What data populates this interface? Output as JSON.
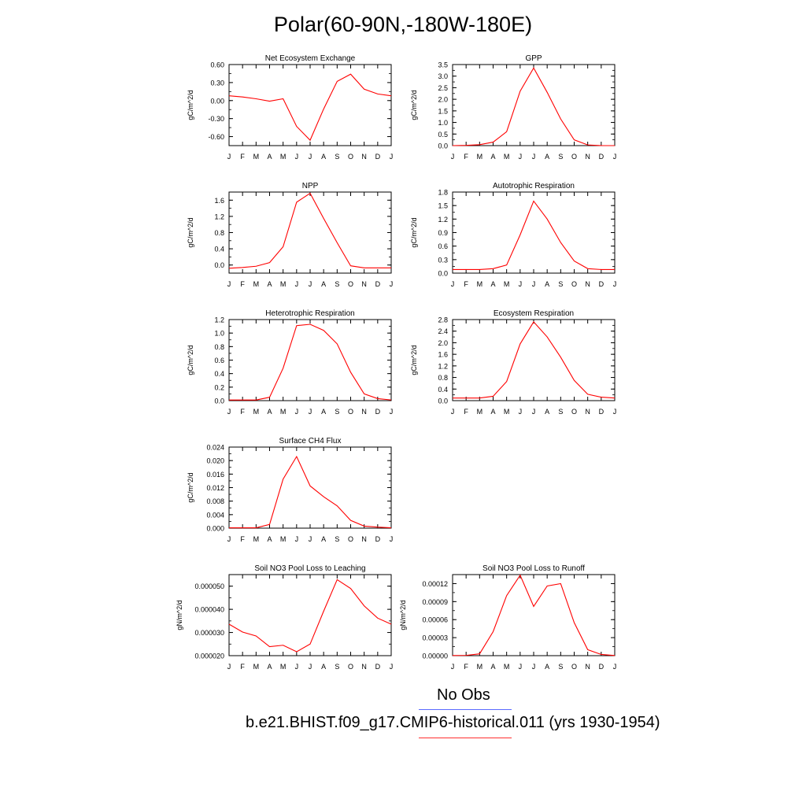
{
  "figure": {
    "title": "Polar(60-90N,-180W-180E)"
  },
  "chart_data": [
    {
      "type": "line",
      "title": "Net Ecosystem Exchange",
      "ylabel": "gC/m^2/d",
      "xlabel": "",
      "x": [
        "J",
        "F",
        "M",
        "A",
        "M",
        "J",
        "J",
        "A",
        "S",
        "O",
        "N",
        "D",
        "J"
      ],
      "ylim": [
        -0.75,
        0.6
      ],
      "yticks": [
        0.6,
        0.3,
        0.0,
        -0.3,
        -0.6
      ],
      "ytick_labels": [
        "0.60",
        "0.30",
        "0.00",
        "-0.30",
        "-0.60"
      ],
      "series": [
        {
          "values": [
            0.08,
            0.06,
            0.03,
            -0.01,
            0.03,
            -0.43,
            -0.66,
            -0.14,
            0.32,
            0.44,
            0.19,
            0.11,
            0.08
          ]
        }
      ]
    },
    {
      "type": "line",
      "title": "GPP",
      "ylabel": "gC/m^2/d",
      "xlabel": "",
      "x": [
        "J",
        "F",
        "M",
        "A",
        "M",
        "J",
        "J",
        "A",
        "S",
        "O",
        "N",
        "D",
        "J"
      ],
      "ylim": [
        0,
        3.5
      ],
      "yticks": [
        0,
        0.5,
        1,
        1.5,
        2,
        2.5,
        3,
        3.5
      ],
      "ytick_labels": [
        "0.0",
        "0.5",
        "1.0",
        "1.5",
        "2.0",
        "2.5",
        "3.0",
        "3.5"
      ],
      "series": [
        {
          "values": [
            0.0,
            0.01,
            0.04,
            0.15,
            0.6,
            2.35,
            3.35,
            2.3,
            1.15,
            0.25,
            0.03,
            0.0,
            0.0
          ]
        }
      ]
    },
    {
      "type": "line",
      "title": "NPP",
      "ylabel": "gC/m^2/d",
      "xlabel": "",
      "x": [
        "J",
        "F",
        "M",
        "A",
        "M",
        "J",
        "J",
        "A",
        "S",
        "O",
        "N",
        "D",
        "J"
      ],
      "ylim": [
        -0.2,
        1.8
      ],
      "yticks": [
        0.0,
        0.4,
        0.8,
        1.2,
        1.6
      ],
      "ytick_labels": [
        "0.0",
        "0.4",
        "0.8",
        "1.2",
        "1.6"
      ],
      "series": [
        {
          "values": [
            -0.08,
            -0.06,
            -0.03,
            0.06,
            0.45,
            1.55,
            1.77,
            1.15,
            0.55,
            -0.02,
            -0.07,
            -0.07,
            -0.07
          ]
        }
      ]
    },
    {
      "type": "line",
      "title": "Autotrophic Respiration",
      "ylabel": "gC/m^2/d",
      "xlabel": "",
      "x": [
        "J",
        "F",
        "M",
        "A",
        "M",
        "J",
        "J",
        "A",
        "S",
        "O",
        "N",
        "D",
        "J"
      ],
      "ylim": [
        0,
        1.8
      ],
      "yticks": [
        0,
        0.3,
        0.6,
        0.9,
        1.2,
        1.5,
        1.8
      ],
      "ytick_labels": [
        "0.0",
        "0.3",
        "0.6",
        "0.9",
        "1.2",
        "1.5",
        "1.8"
      ],
      "series": [
        {
          "values": [
            0.08,
            0.08,
            0.08,
            0.1,
            0.18,
            0.85,
            1.6,
            1.2,
            0.68,
            0.27,
            0.1,
            0.08,
            0.08
          ]
        }
      ]
    },
    {
      "type": "line",
      "title": "Heterotrophic Respiration",
      "ylabel": "gC/m^2/d",
      "xlabel": "",
      "x": [
        "J",
        "F",
        "M",
        "A",
        "M",
        "J",
        "J",
        "A",
        "S",
        "O",
        "N",
        "D",
        "J"
      ],
      "ylim": [
        0,
        1.2
      ],
      "yticks": [
        0,
        0.2,
        0.4,
        0.6,
        0.8,
        1.0,
        1.2
      ],
      "ytick_labels": [
        "0.0",
        "0.2",
        "0.4",
        "0.6",
        "0.8",
        "1.0",
        "1.2"
      ],
      "series": [
        {
          "values": [
            0.01,
            0.01,
            0.01,
            0.05,
            0.48,
            1.11,
            1.13,
            1.04,
            0.84,
            0.42,
            0.1,
            0.03,
            0.01
          ]
        }
      ]
    },
    {
      "type": "line",
      "title": "Ecosystem Respiration",
      "ylabel": "gC/m^2/d",
      "xlabel": "",
      "x": [
        "J",
        "F",
        "M",
        "A",
        "M",
        "J",
        "J",
        "A",
        "S",
        "O",
        "N",
        "D",
        "J"
      ],
      "ylim": [
        0,
        2.8
      ],
      "yticks": [
        0,
        0.4,
        0.8,
        1.2,
        1.6,
        2.0,
        2.4,
        2.8
      ],
      "ytick_labels": [
        "0.0",
        "0.4",
        "0.8",
        "1.2",
        "1.6",
        "2.0",
        "2.4",
        "2.8"
      ],
      "series": [
        {
          "values": [
            0.09,
            0.09,
            0.09,
            0.15,
            0.66,
            1.96,
            2.72,
            2.2,
            1.5,
            0.7,
            0.22,
            0.12,
            0.09
          ]
        }
      ]
    },
    {
      "type": "line",
      "title": "Surface CH4 Flux",
      "ylabel": "gC/m^2/d",
      "xlabel": "",
      "x": [
        "J",
        "F",
        "M",
        "A",
        "M",
        "J",
        "J",
        "A",
        "S",
        "O",
        "N",
        "D",
        "J"
      ],
      "ylim": [
        0,
        0.024
      ],
      "yticks": [
        0,
        0.004,
        0.008,
        0.012,
        0.016,
        0.02,
        0.024
      ],
      "ytick_labels": [
        "0.000",
        "0.004",
        "0.008",
        "0.012",
        "0.016",
        "0.020",
        "0.024"
      ],
      "series": [
        {
          "values": [
            0.0001,
            0.0001,
            0.0001,
            0.0011,
            0.0145,
            0.0212,
            0.0125,
            0.0093,
            0.0066,
            0.0023,
            0.0006,
            0.0003,
            0.0001
          ]
        }
      ]
    },
    {
      "type": "line",
      "title": "Soil NO3 Pool Loss to Leaching",
      "ylabel": "gN/m^2/d",
      "xlabel": "",
      "x": [
        "J",
        "F",
        "M",
        "A",
        "M",
        "J",
        "J",
        "A",
        "S",
        "O",
        "N",
        "D",
        "J"
      ],
      "ylim": [
        2e-05,
        5.5e-05
      ],
      "yticks": [
        2e-05,
        3e-05,
        4e-05,
        5e-05
      ],
      "ytick_labels": [
        "0.000020",
        "0.000030",
        "0.000040",
        "0.000050"
      ],
      "series": [
        {
          "values": [
            3.36e-05,
            3.02e-05,
            2.85e-05,
            2.39e-05,
            2.45e-05,
            2.17e-05,
            2.5e-05,
            3.92e-05,
            5.28e-05,
            4.9e-05,
            4.15e-05,
            3.62e-05,
            3.36e-05
          ]
        }
      ]
    },
    {
      "type": "line",
      "title": "Soil NO3 Pool Loss to Runoff",
      "ylabel": "gN/m^2/d",
      "xlabel": "",
      "x": [
        "J",
        "F",
        "M",
        "A",
        "M",
        "J",
        "J",
        "A",
        "S",
        "O",
        "N",
        "D",
        "J"
      ],
      "ylim": [
        0,
        0.000135
      ],
      "yticks": [
        0,
        3e-05,
        6e-05,
        9e-05,
        0.00012
      ],
      "ytick_labels": [
        "0.00000",
        "0.00003",
        "0.00006",
        "0.00009",
        "0.00012"
      ],
      "series": [
        {
          "values": [
            2e-07,
            5e-07,
            3e-06,
            4e-05,
            0.0001,
            0.000134,
            8.2e-05,
            0.000116,
            0.00012,
            5.5e-05,
            1e-05,
            2e-06,
            2e-07
          ]
        }
      ]
    }
  ],
  "legend": {
    "items": [
      {
        "label": "No Obs",
        "color": "#5b6bff"
      },
      {
        "label": "b.e21.BHIST.f09_g17.CMIP6-historical.011 (yrs 1930-1954)",
        "color": "#ff3030"
      }
    ]
  },
  "series_color": "#ff0000"
}
